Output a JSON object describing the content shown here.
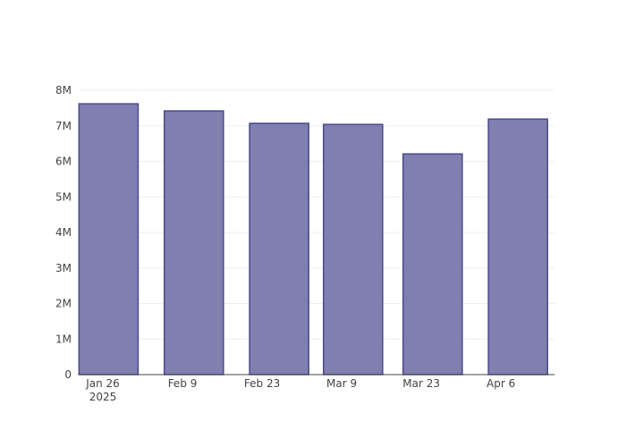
{
  "chart_data": {
    "type": "bar",
    "x": [
      "2025-01-27",
      "2025-02-11",
      "2025-02-26",
      "2025-03-11",
      "2025-03-25",
      "2025-04-09"
    ],
    "values": [
      7620000,
      7420000,
      7070000,
      7040000,
      6210000,
      7190000
    ],
    "color": "#7f7fb0",
    "edge_color": "#4b4b8c",
    "xlim": [
      "2025-01-21 18:00",
      "2025-04-15 10:00"
    ],
    "xticks": [
      {
        "value": "2025-01-26",
        "label": "Jan 26\n2025"
      },
      {
        "value": "2025-02-09",
        "label": "Feb 9"
      },
      {
        "value": "2025-02-23",
        "label": "Feb 23"
      },
      {
        "value": "2025-03-09",
        "label": "Mar 9"
      },
      {
        "value": "2025-03-23",
        "label": "Mar 23"
      },
      {
        "value": "2025-04-06",
        "label": "Apr 6"
      }
    ],
    "ylim": [
      0,
      8000000
    ],
    "yticks": [
      0,
      {
        "value": 1000000,
        "label": "1M"
      },
      {
        "value": 2000000,
        "label": "2M"
      },
      {
        "value": 3000000,
        "label": "3M"
      },
      {
        "value": 4000000,
        "label": "4M"
      },
      {
        "value": 5000000,
        "label": "5M"
      },
      {
        "value": 6000000,
        "label": "6M"
      },
      {
        "value": 7000000,
        "label": "7M"
      },
      {
        "value": 8000000,
        "label": "8M"
      }
    ],
    "grid": true
  }
}
